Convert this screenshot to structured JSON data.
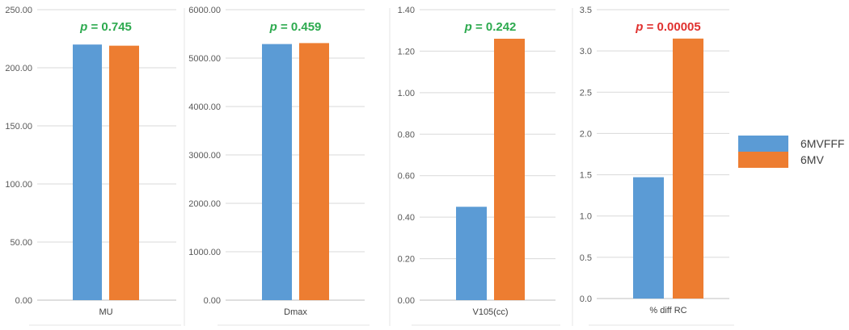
{
  "colors": {
    "series_a": "#5b9bd5",
    "series_b": "#ed7d31",
    "p_ns": "#2daa4f",
    "p_sig": "#e0312f",
    "grid": "#d9d9d9",
    "axis": "#bfbfbf"
  },
  "legend": {
    "placement": "right",
    "entries": [
      "6MVFFF",
      "6MV"
    ]
  },
  "chart_data": [
    {
      "type": "bar",
      "categories": [
        "MU"
      ],
      "series": [
        {
          "name": "6MVFFF",
          "values": [
            220.0
          ]
        },
        {
          "name": "6MV",
          "values": [
            219.0
          ]
        }
      ],
      "ylim": [
        0,
        250
      ],
      "ytick_step": 50,
      "yticks": [
        "0.00",
        "50.00",
        "100.00",
        "150.00",
        "200.00",
        "250.00"
      ],
      "annotation": {
        "p_symbol": "p",
        "text": "= 0.745",
        "significant": false
      },
      "grid": true
    },
    {
      "type": "bar",
      "categories": [
        "Dmax"
      ],
      "series": [
        {
          "name": "6MVFFF",
          "values": [
            5290
          ]
        },
        {
          "name": "6MV",
          "values": [
            5310
          ]
        }
      ],
      "ylim": [
        0,
        6000
      ],
      "ytick_step": 1000,
      "yticks": [
        "0.00",
        "1000.00",
        "2000.00",
        "3000.00",
        "4000.00",
        "5000.00",
        "6000.00"
      ],
      "annotation": {
        "p_symbol": "p",
        "text": "= 0.459",
        "significant": false
      },
      "grid": true
    },
    {
      "type": "bar",
      "categories": [
        "V105(cc)"
      ],
      "series": [
        {
          "name": "6MVFFF",
          "values": [
            0.45
          ]
        },
        {
          "name": "6MV",
          "values": [
            1.26
          ]
        }
      ],
      "ylim": [
        0,
        1.4
      ],
      "ytick_step": 0.2,
      "yticks": [
        "0.00",
        "0.20",
        "0.40",
        "0.60",
        "0.80",
        "1.00",
        "1.20",
        "1.40"
      ],
      "annotation": {
        "p_symbol": "p",
        "text": "= 0.242",
        "significant": false
      },
      "grid": true
    },
    {
      "type": "bar",
      "categories": [
        "% diff RC"
      ],
      "series": [
        {
          "name": "6MVFFF",
          "values": [
            1.47
          ]
        },
        {
          "name": "6MV",
          "values": [
            3.15
          ]
        }
      ],
      "ylim": [
        0,
        3.5
      ],
      "ytick_step": 0.5,
      "yticks": [
        "0.0",
        "0.5",
        "1.0",
        "1.5",
        "2.0",
        "2.5",
        "3.0",
        "3.5"
      ],
      "annotation": {
        "p_symbol": "p",
        "text": "= 0.00005",
        "significant": true
      },
      "grid": true
    }
  ]
}
